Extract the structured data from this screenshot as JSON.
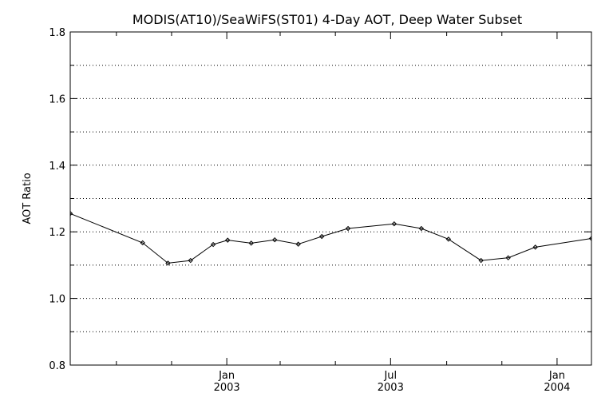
{
  "chart_data": {
    "type": "line",
    "title": "MODIS(AT10)/SeaWiFS(ST01) 4-Day AOT, Deep Water Subset",
    "xlabel": "",
    "ylabel": "AOT Ratio",
    "ylim": [
      0.8,
      1.8
    ],
    "xlim": [
      "2002-07-12",
      "2004-02-08"
    ],
    "y_ticks": [
      "0.8",
      "1.0",
      "1.2",
      "1.4",
      "1.6",
      "1.8"
    ],
    "x_tick_labels": [
      {
        "date": "2003-01-01",
        "month": "Jan",
        "year": "2003"
      },
      {
        "date": "2003-07-01",
        "month": "Jul",
        "year": "2003"
      },
      {
        "date": "2004-01-01",
        "month": "Jan",
        "year": "2004"
      }
    ],
    "grid": {
      "y_dotted": true,
      "x": false
    },
    "series": [
      {
        "color": "#000000",
        "marker": "diamond",
        "x": [
          "2002-07-12",
          "2002-09-30",
          "2002-10-28",
          "2002-11-22",
          "2002-12-17",
          "2003-01-02",
          "2003-01-28",
          "2003-02-23",
          "2003-03-21",
          "2003-04-16",
          "2003-05-15",
          "2003-07-05",
          "2003-08-04",
          "2003-09-03",
          "2003-10-09",
          "2003-11-08",
          "2003-12-08",
          "2004-02-08"
        ],
        "y": [
          1.255,
          1.167,
          1.106,
          1.114,
          1.162,
          1.175,
          1.166,
          1.176,
          1.163,
          1.186,
          1.21,
          1.224,
          1.21,
          1.178,
          1.114,
          1.122,
          1.154,
          1.18
        ]
      }
    ]
  }
}
